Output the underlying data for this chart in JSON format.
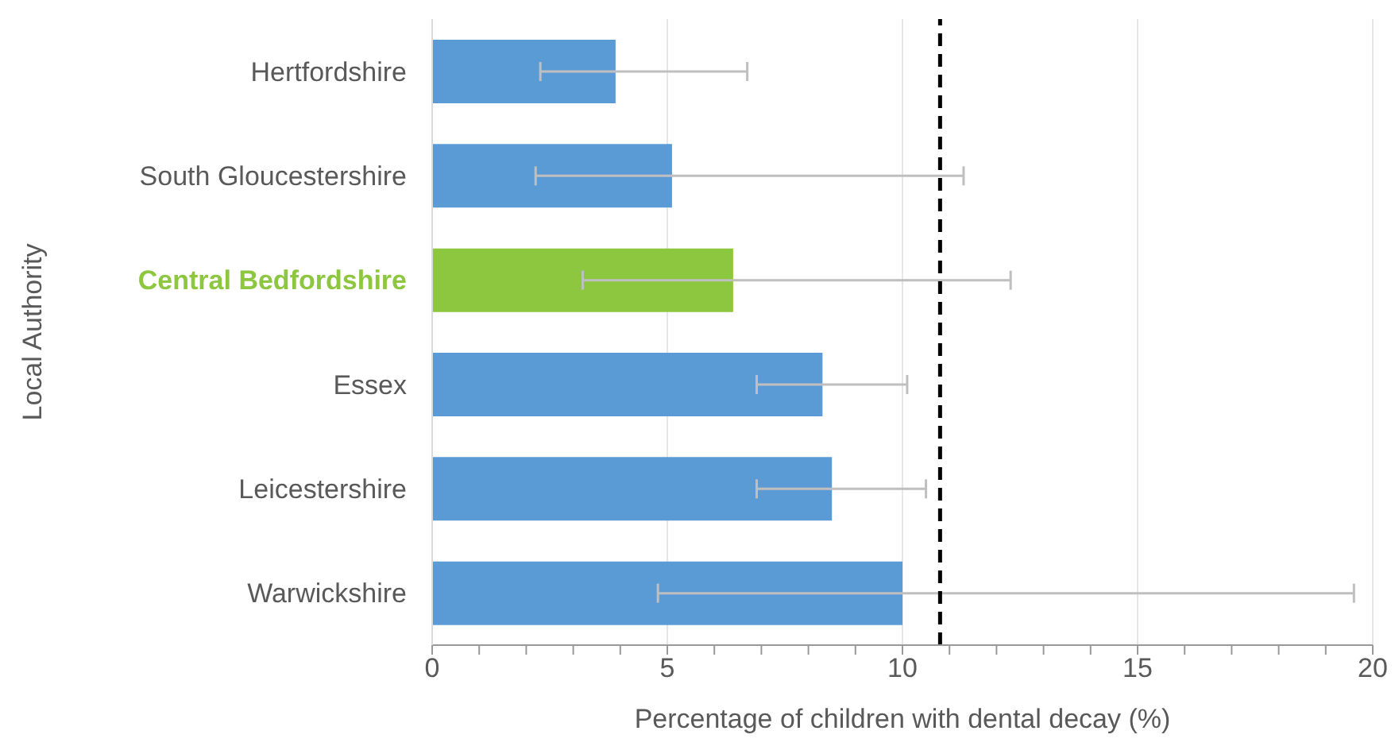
{
  "chart_data": {
    "type": "bar",
    "orientation": "horizontal",
    "xlabel": "Percentage of children with dental decay (%)",
    "ylabel": "Local Authority",
    "categories": [
      "Hertfordshire",
      "South Gloucestershire",
      "Central Bedfordshire",
      "Essex",
      "Leicestershire",
      "Warwickshire"
    ],
    "values": [
      3.9,
      5.1,
      6.4,
      8.3,
      8.5,
      10.0
    ],
    "colors": [
      "#5b9bd5",
      "#5b9bd5",
      "#8dc63f",
      "#5b9bd5",
      "#5b9bd5",
      "#5b9bd5"
    ],
    "errors": [
      [
        2.3,
        6.7
      ],
      [
        2.2,
        11.3
      ],
      [
        3.2,
        12.3
      ],
      [
        6.9,
        10.1
      ],
      [
        6.9,
        10.5
      ],
      [
        4.8,
        19.6
      ]
    ],
    "xlim": [
      0,
      20
    ],
    "xticks": [
      0,
      {
        "value": 1,
        "label": null
      },
      {
        "value": 2,
        "label": null
      },
      {
        "value": 3,
        "label": null
      },
      {
        "value": 4,
        "label": null
      },
      5,
      {
        "value": 6,
        "label": null
      },
      {
        "value": 7,
        "label": null
      },
      {
        "value": 8,
        "label": null
      },
      {
        "value": 9,
        "label": null
      },
      10,
      {
        "value": 11,
        "label": null
      },
      {
        "value": 12,
        "label": null
      },
      {
        "value": 13,
        "label": null
      },
      {
        "value": 14,
        "label": null
      },
      15,
      {
        "value": 16,
        "label": null
      },
      {
        "value": 17,
        "label": null
      },
      {
        "value": 18,
        "label": null
      },
      {
        "value": 19,
        "label": null
      },
      20
    ],
    "ref_lines": [
      {
        "axis": "x",
        "value": 10.8,
        "color": "#000000",
        "line_style": "dashed"
      }
    ],
    "grid": "x"
  }
}
